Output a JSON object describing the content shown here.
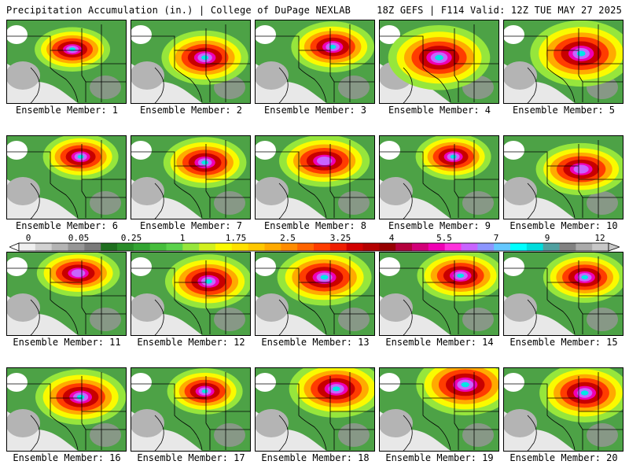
{
  "header": {
    "left": "Precipitation Accumulation (in.) | College of DuPage NEXLAB",
    "right": "18Z GEFS | F114 Valid: 12Z TUE MAY 27 2025"
  },
  "panels": [
    {
      "label": "Ensemble Member: 1",
      "c": [
        0.55,
        0.35
      ],
      "a": 0.6,
      "r": 1.0
    },
    {
      "label": "Ensemble Member: 2",
      "c": [
        0.62,
        0.45
      ],
      "a": 0.75,
      "r": 1.15
    },
    {
      "label": "Ensemble Member: 3",
      "c": [
        0.65,
        0.32
      ],
      "a": 0.7,
      "r": 1.1
    },
    {
      "label": "Ensemble Member: 4",
      "c": [
        0.5,
        0.45
      ],
      "a": 0.8,
      "r": 1.35
    },
    {
      "label": "Ensemble Member: 5",
      "c": [
        0.65,
        0.4
      ],
      "a": 0.85,
      "r": 1.35
    },
    {
      "label": "Ensemble Member: 6",
      "c": [
        0.62,
        0.25
      ],
      "a": 0.7,
      "r": 1.0
    },
    {
      "label": "Ensemble Member: 7",
      "c": [
        0.62,
        0.32
      ],
      "a": 0.7,
      "r": 1.1
    },
    {
      "label": "Ensemble Member: 8",
      "c": [
        0.58,
        0.3
      ],
      "a": 0.55,
      "r": 1.2
    },
    {
      "label": "Ensemble Member: 9",
      "c": [
        0.62,
        0.25
      ],
      "a": 0.7,
      "r": 1.0
    },
    {
      "label": "Ensemble Member: 10",
      "c": [
        0.65,
        0.4
      ],
      "a": 0.55,
      "r": 1.2
    },
    {
      "label": "Ensemble Member: 11",
      "c": [
        0.6,
        0.25
      ],
      "a": 0.5,
      "r": 1.1
    },
    {
      "label": "Ensemble Member: 12",
      "c": [
        0.65,
        0.35
      ],
      "a": 0.75,
      "r": 1.15
    },
    {
      "label": "Ensemble Member: 13",
      "c": [
        0.58,
        0.3
      ],
      "a": 0.65,
      "r": 1.25
    },
    {
      "label": "Ensemble Member: 14",
      "c": [
        0.68,
        0.28
      ],
      "a": 0.6,
      "r": 1.15
    },
    {
      "label": "Ensemble Member: 15",
      "c": [
        0.68,
        0.3
      ],
      "a": 0.7,
      "r": 1.1
    },
    {
      "label": "Ensemble Member: 16",
      "c": [
        0.62,
        0.35
      ],
      "a": 0.7,
      "r": 1.2
    },
    {
      "label": "Ensemble Member: 17",
      "c": [
        0.62,
        0.28
      ],
      "a": 0.7,
      "r": 1.0
    },
    {
      "label": "Ensemble Member: 18",
      "c": [
        0.68,
        0.25
      ],
      "a": 0.7,
      "r": 1.25
    },
    {
      "label": "Ensemble Member: 19",
      "c": [
        0.72,
        0.2
      ],
      "a": 0.75,
      "r": 1.3
    },
    {
      "label": "Ensemble Member: 20",
      "c": [
        0.68,
        0.3
      ],
      "a": 0.85,
      "r": 1.2
    }
  ],
  "colorbar": {
    "ticks": [
      "0",
      "0.05",
      "0.25",
      "1",
      "1.75",
      "2.5",
      "3.25",
      "4",
      "5.5",
      "7",
      "9",
      "12"
    ],
    "colors": [
      "#f0f0f0",
      "#d2d2d2",
      "#b4b4b4",
      "#969696",
      "#7a7a7a",
      "#1e6e1e",
      "#288c28",
      "#32a532",
      "#46be3c",
      "#5ad24b",
      "#96e63c",
      "#d2f01e",
      "#fafa00",
      "#ffe100",
      "#ffc800",
      "#ffaa00",
      "#ff8c00",
      "#ff6400",
      "#ff3c00",
      "#f01e00",
      "#d20000",
      "#b40000",
      "#960000",
      "#b4003c",
      "#d20078",
      "#f000b4",
      "#ff32dc",
      "#c864ff",
      "#8c96ff",
      "#64c8ff",
      "#00ffff",
      "#00dcdc",
      "#50a0a0",
      "#828282",
      "#aaaaaa",
      "#c8c8c8"
    ]
  }
}
